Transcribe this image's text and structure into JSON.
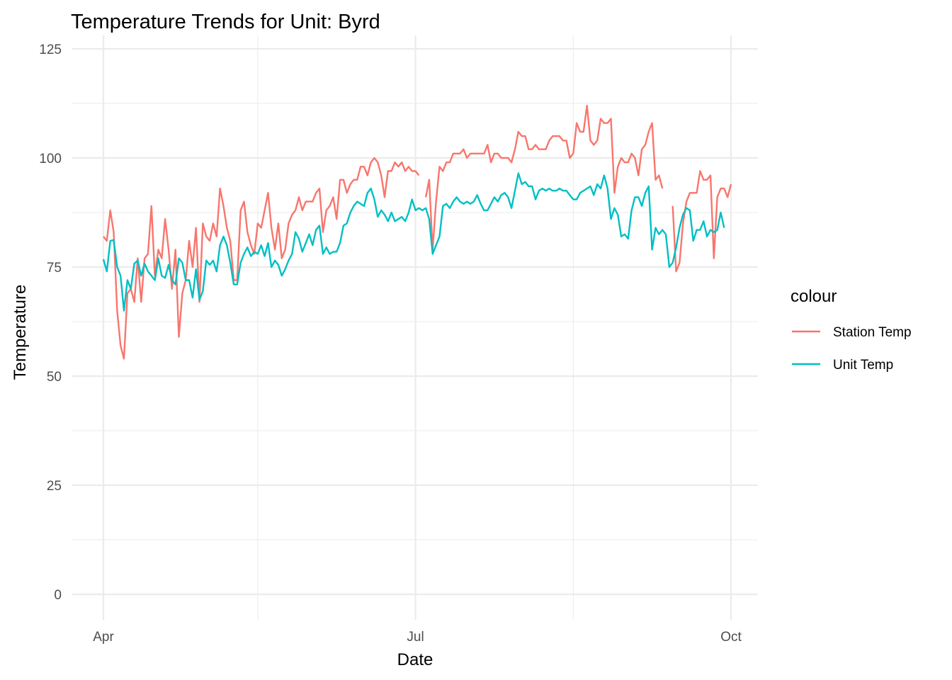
{
  "chart_data": {
    "type": "line",
    "title": "Temperature Trends for Unit: Byrd",
    "xlabel": "Date",
    "ylabel": "Temperature",
    "x_range": [
      "2023-04-01",
      "2023-09-30"
    ],
    "ylim": [
      0,
      125
    ],
    "y_ticks": [
      0,
      25,
      50,
      75,
      100,
      125
    ],
    "x_ticks": [
      {
        "date": "2023-04-01",
        "label": "Apr"
      },
      {
        "date": "2023-07-01",
        "label": "Jul"
      },
      {
        "date": "2023-10-01",
        "label": "Oct"
      }
    ],
    "x_minor_ticks": [
      "2023-05-16",
      "2023-08-16"
    ],
    "grid": true,
    "legend": {
      "title": "colour",
      "position": "right"
    },
    "series": [
      {
        "name": "Station Temp",
        "color": "#F8766D",
        "start_date": "2023-04-01",
        "values": [
          82,
          81,
          88,
          83,
          65,
          57,
          54,
          69,
          70,
          67,
          77,
          67,
          77,
          78,
          89,
          73,
          79,
          77,
          86,
          79,
          70,
          79,
          59,
          69,
          72,
          81,
          75,
          84,
          67,
          85,
          82,
          81,
          85,
          82,
          93,
          89,
          84,
          81,
          72,
          72,
          88,
          90,
          83,
          80,
          78,
          85,
          84,
          88,
          92,
          84,
          79,
          85,
          77,
          79,
          85,
          87,
          88,
          91,
          88,
          90,
          90,
          90,
          92,
          93,
          83,
          88,
          89,
          91,
          86,
          95,
          95,
          92,
          94,
          95,
          95,
          98,
          98,
          96,
          99,
          100,
          99,
          96,
          91,
          97,
          97,
          99,
          98,
          99,
          97,
          98,
          97,
          97,
          96,
          null,
          91,
          95,
          79,
          90,
          98,
          97,
          99,
          99,
          101,
          101,
          101,
          102,
          100,
          101,
          101,
          101,
          101,
          101,
          103,
          99,
          101,
          101,
          100,
          100,
          100,
          99,
          102,
          106,
          105,
          105,
          102,
          102,
          103,
          102,
          102,
          102,
          104,
          105,
          105,
          105,
          104,
          104,
          100,
          101,
          108,
          106,
          106,
          112,
          104,
          103,
          104,
          109,
          108,
          108,
          109,
          92,
          98,
          100,
          99,
          99,
          101,
          100,
          96,
          102,
          103,
          106,
          108,
          95,
          96,
          93,
          null,
          null,
          89,
          74,
          76,
          85,
          90,
          92,
          92,
          92,
          97,
          95,
          95,
          96,
          77,
          91,
          93,
          93,
          91,
          94
        ]
      },
      {
        "name": "Unit Temp",
        "color": "#00BFC4",
        "start_date": "2023-04-01",
        "values": [
          76.8,
          74,
          81,
          81.2,
          75,
          73,
          65,
          72,
          70,
          75.8,
          76.5,
          73,
          75.8,
          74,
          73,
          72,
          77,
          73,
          72.5,
          75.5,
          72,
          71,
          77,
          76,
          72,
          72,
          68,
          74.5,
          67.5,
          69.5,
          76.5,
          75.5,
          76.5,
          74,
          80,
          82,
          80,
          76,
          71,
          71,
          76,
          78,
          79.5,
          77.5,
          78.5,
          78,
          80,
          77.5,
          80.5,
          75,
          76.5,
          75.5,
          73,
          74.5,
          76.5,
          78,
          83,
          81.5,
          78.5,
          80.5,
          82.5,
          80,
          83.5,
          84.5,
          78,
          79.5,
          78,
          78.5,
          78.5,
          80.5,
          84.5,
          85,
          87.5,
          89,
          90,
          89.5,
          89,
          92,
          93,
          90.5,
          86.5,
          88,
          87,
          85.5,
          87.5,
          85.5,
          86,
          86.5,
          85.5,
          87.5,
          90.5,
          88,
          88.5,
          88,
          88.5,
          86,
          78,
          80,
          82,
          89,
          89.5,
          88.5,
          90,
          91,
          90,
          89.5,
          90,
          89.5,
          90,
          91.5,
          89.5,
          88,
          88,
          89.5,
          91,
          90,
          91.5,
          92,
          91,
          88.5,
          92.5,
          96.5,
          94,
          94.5,
          93.5,
          93.5,
          90.5,
          92.5,
          93,
          92.5,
          93,
          92.5,
          92.5,
          93,
          92.5,
          92.5,
          91.5,
          90.5,
          90.5,
          92,
          92.5,
          93,
          93.5,
          91.5,
          94,
          93,
          96,
          93,
          86,
          88.5,
          87,
          82,
          82.5,
          81.5,
          88,
          91,
          91,
          89,
          92,
          93.5,
          79,
          84,
          82.5,
          83.5,
          82.5,
          75,
          76,
          79.5,
          84,
          87,
          88.5,
          88,
          81,
          83.5,
          83.5,
          85.5,
          82,
          83.5,
          83,
          83.5,
          87.5,
          84
        ]
      }
    ]
  }
}
